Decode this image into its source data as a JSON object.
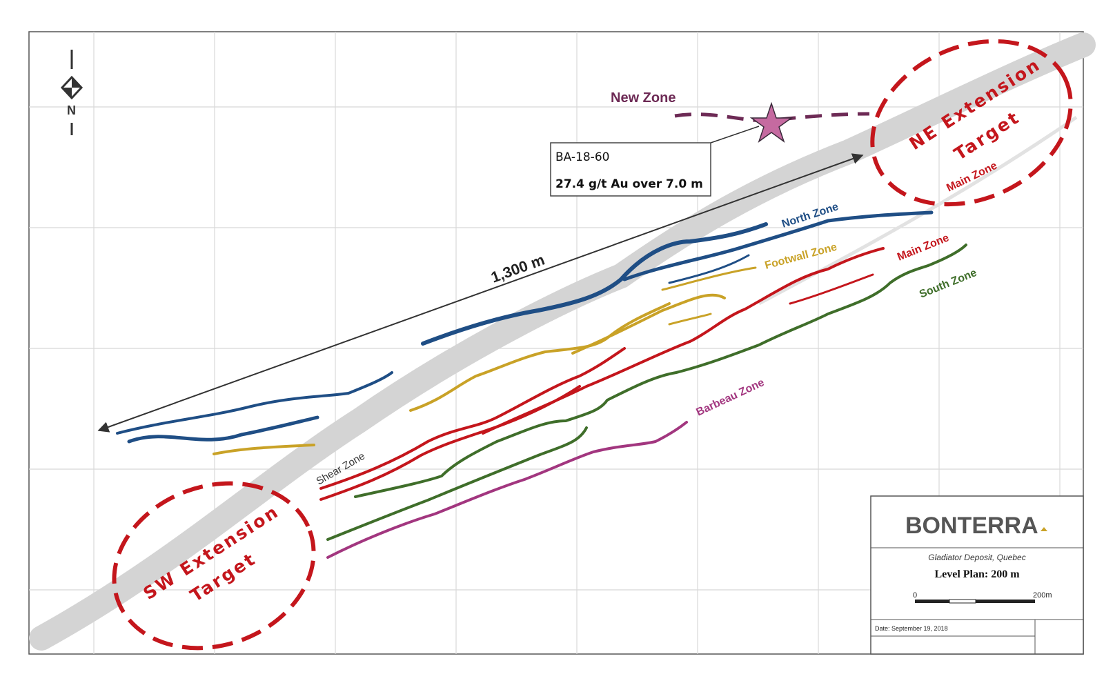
{
  "map": {
    "labels": {
      "new_zone": "New Zone",
      "distance": "1,300 m",
      "north_zone": "North Zone",
      "footwall_zone": "Footwall Zone",
      "main_zone": "Main Zone",
      "main_zone_ne": "Main Zone",
      "south_zone": "South Zone",
      "barbeau_zone": "Barbeau Zone",
      "shear_zone": "Shear Zone",
      "ne_target_line1": "NE Extension",
      "ne_target_line2": "Target",
      "sw_target_line1": "SW Extension",
      "sw_target_line2": "Target",
      "north_arrow": "N"
    },
    "callout": {
      "hole_id": "BA-18-60",
      "assay": "27.4 g/t Au over 7.0 m"
    },
    "colors": {
      "north_zone": "#1f4e85",
      "footwall_zone": "#c9a227",
      "main_zone": "#c4161c",
      "south_zone": "#3f6e2a",
      "barbeau_zone": "#a2367f",
      "new_zone": "#6d2a55",
      "shear_zone": "#d4d4d4",
      "target": "#c4161c"
    }
  },
  "title_block": {
    "company": "BONTERRA",
    "deposit": "Gladiator Deposit, Quebec",
    "plan": "Level Plan: 200 m",
    "scale_start": "0",
    "scale_end": "200m",
    "date": "Date: September 19, 2018"
  }
}
